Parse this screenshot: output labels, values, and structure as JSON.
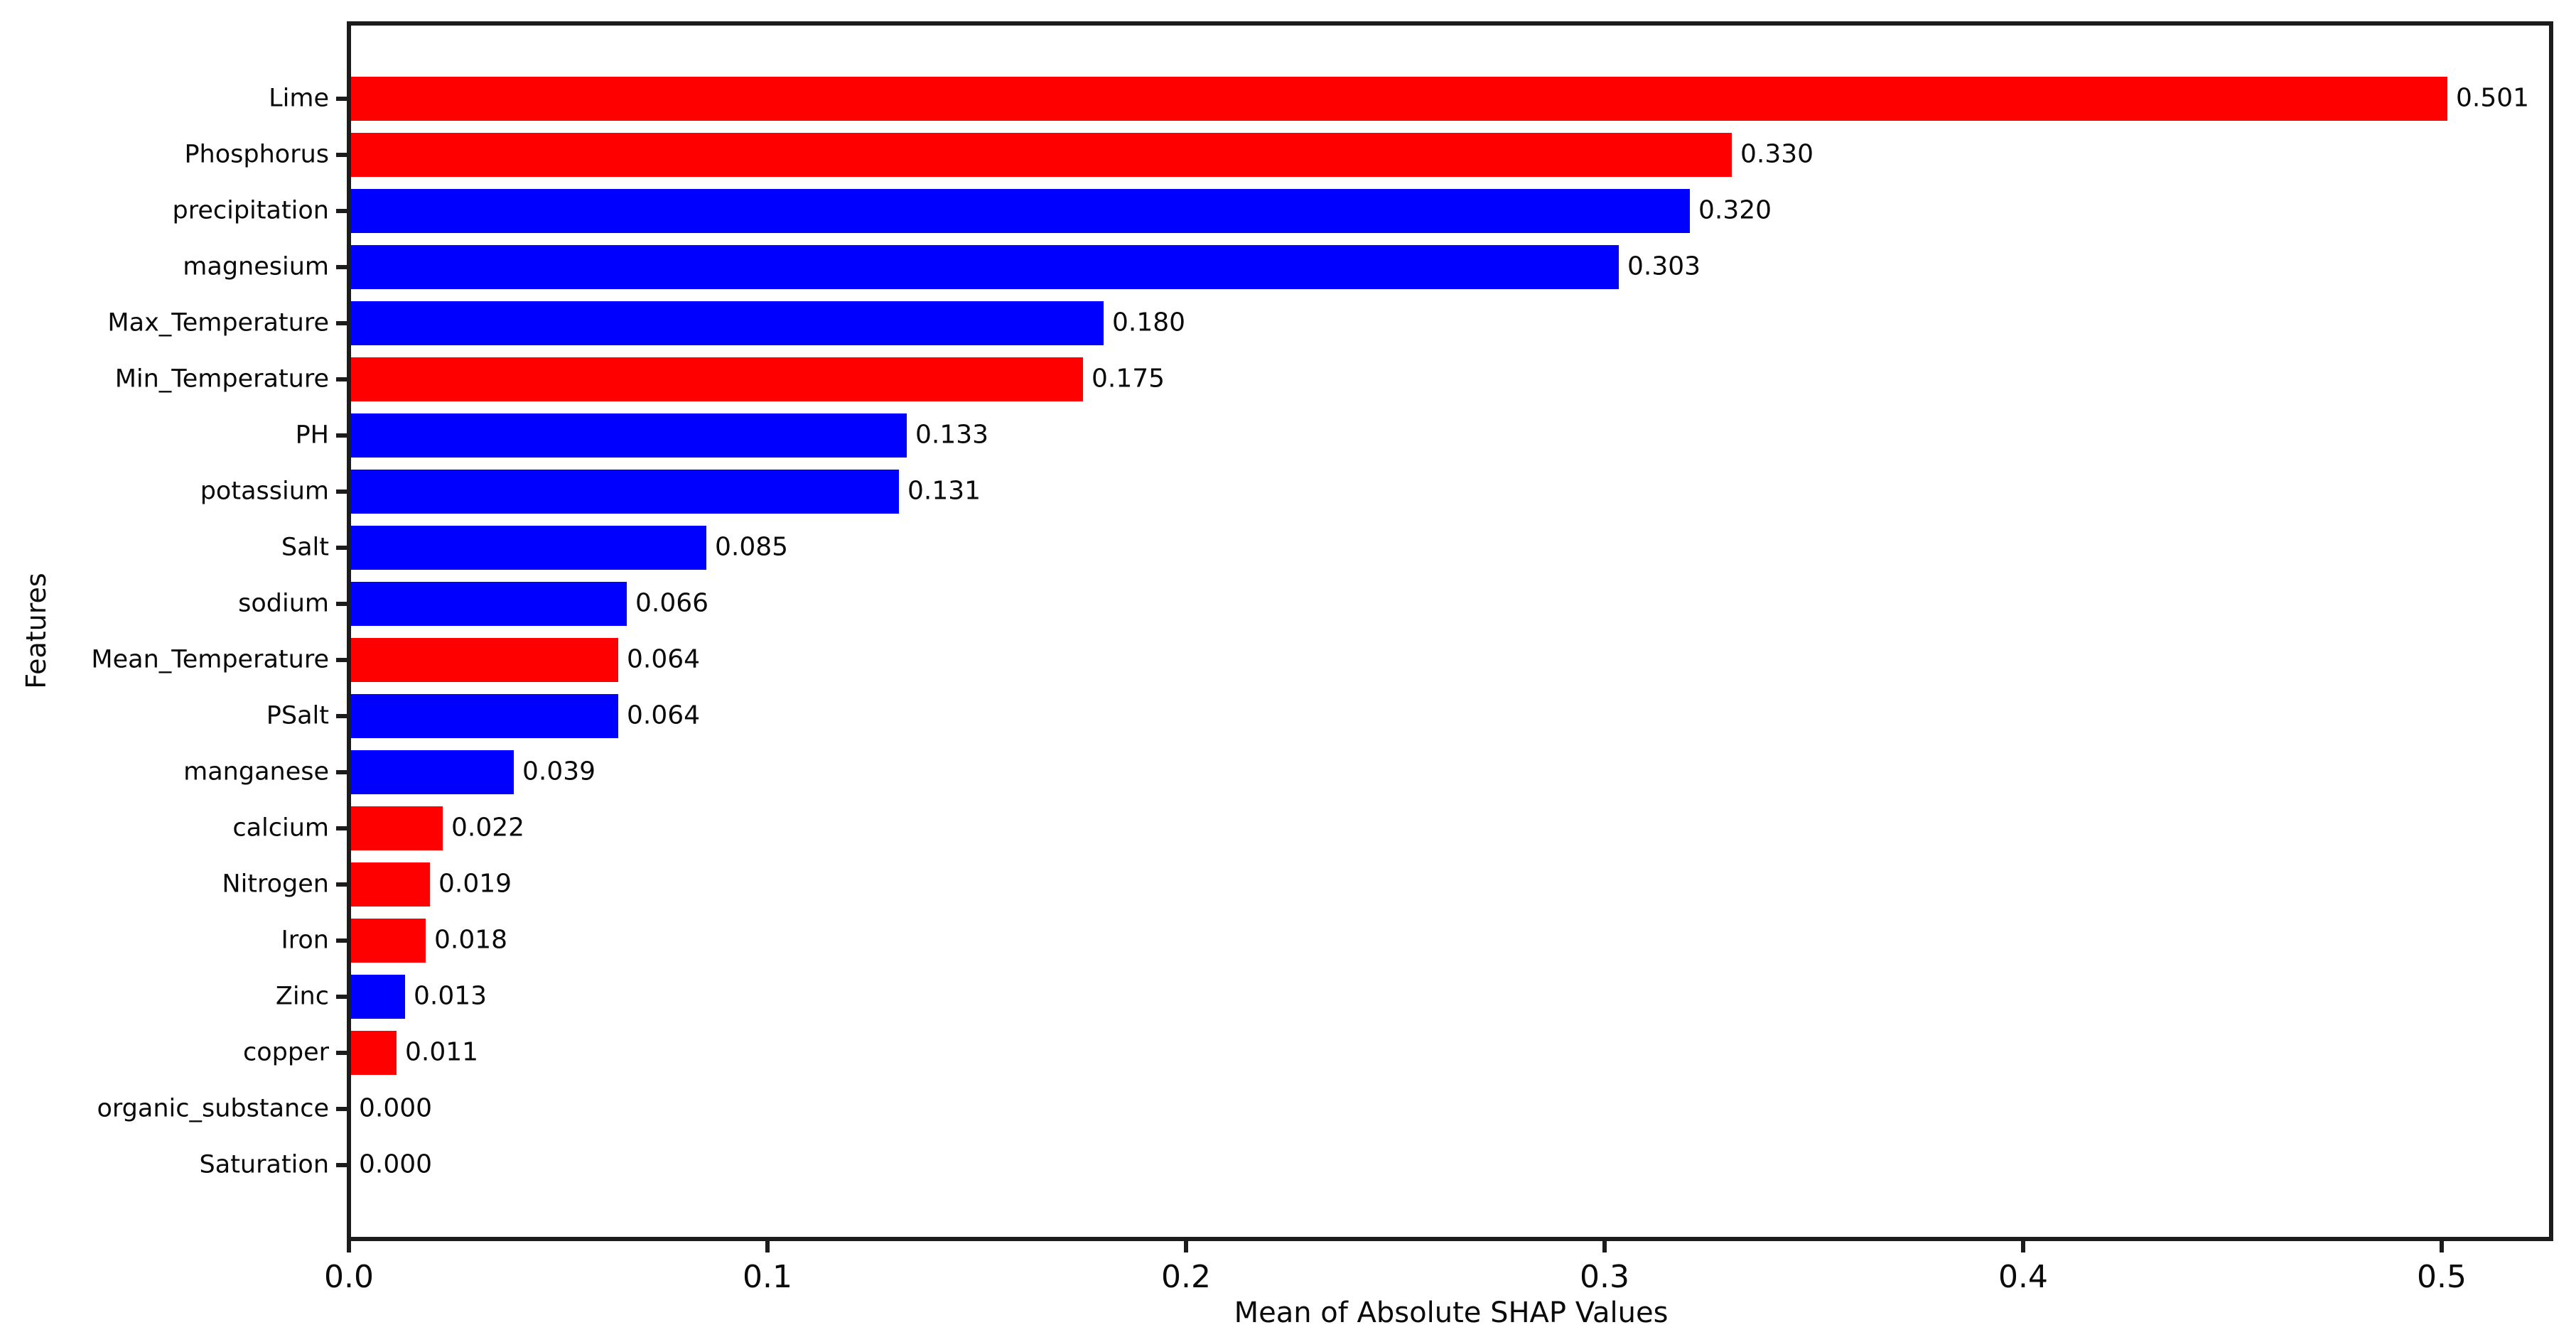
{
  "chart_data": {
    "type": "bar",
    "orientation": "horizontal",
    "title": "",
    "xlabel": "Mean of Absolute SHAP Values",
    "ylabel": "Features",
    "xlim": [
      0,
      0.5266
    ],
    "x_tick_values": [
      0.0,
      0.1,
      0.2,
      0.3,
      0.4,
      0.5
    ],
    "x_tick_labels": [
      "0.0",
      "0.1",
      "0.2",
      "0.3",
      "0.4",
      "0.5"
    ],
    "grid": false,
    "legend": false,
    "palette": {
      "red": "#ff0000",
      "blue": "#0000ff"
    },
    "categories": [
      "Lime",
      "Phosphorus",
      "precipitation",
      "magnesium",
      "Max_Temperature",
      "Min_Temperature",
      "PH",
      "potassium",
      "Salt",
      "sodium",
      "Mean_Temperature",
      "PSalt",
      "manganese",
      "calcium",
      "Nitrogen",
      "Iron",
      "Zinc",
      "copper",
      "organic_substance",
      "Saturation"
    ],
    "values": [
      0.501,
      0.33,
      0.32,
      0.303,
      0.18,
      0.175,
      0.133,
      0.131,
      0.085,
      0.066,
      0.064,
      0.064,
      0.039,
      0.022,
      0.019,
      0.018,
      0.013,
      0.011,
      0.0,
      0.0
    ],
    "bars": [
      {
        "label": "Lime",
        "value": 0.501,
        "value_label": "0.501",
        "color": "red"
      },
      {
        "label": "Phosphorus",
        "value": 0.33,
        "value_label": "0.330",
        "color": "red"
      },
      {
        "label": "precipitation",
        "value": 0.32,
        "value_label": "0.320",
        "color": "blue"
      },
      {
        "label": "magnesium",
        "value": 0.303,
        "value_label": "0.303",
        "color": "blue"
      },
      {
        "label": "Max_Temperature",
        "value": 0.18,
        "value_label": "0.180",
        "color": "blue"
      },
      {
        "label": "Min_Temperature",
        "value": 0.175,
        "value_label": "0.175",
        "color": "red"
      },
      {
        "label": "PH",
        "value": 0.133,
        "value_label": "0.133",
        "color": "blue"
      },
      {
        "label": "potassium",
        "value": 0.131,
        "value_label": "0.131",
        "color": "blue"
      },
      {
        "label": "Salt",
        "value": 0.085,
        "value_label": "0.085",
        "color": "blue"
      },
      {
        "label": "sodium",
        "value": 0.066,
        "value_label": "0.066",
        "color": "blue"
      },
      {
        "label": "Mean_Temperature",
        "value": 0.064,
        "value_label": "0.064",
        "color": "red"
      },
      {
        "label": "PSalt",
        "value": 0.064,
        "value_label": "0.064",
        "color": "blue"
      },
      {
        "label": "manganese",
        "value": 0.039,
        "value_label": "0.039",
        "color": "blue"
      },
      {
        "label": "calcium",
        "value": 0.022,
        "value_label": "0.022",
        "color": "red"
      },
      {
        "label": "Nitrogen",
        "value": 0.019,
        "value_label": "0.019",
        "color": "red"
      },
      {
        "label": "Iron",
        "value": 0.018,
        "value_label": "0.018",
        "color": "red"
      },
      {
        "label": "Zinc",
        "value": 0.013,
        "value_label": "0.013",
        "color": "blue"
      },
      {
        "label": "copper",
        "value": 0.011,
        "value_label": "0.011",
        "color": "red"
      },
      {
        "label": "organic_substance",
        "value": 0.0,
        "value_label": "0.000",
        "color": "none"
      },
      {
        "label": "Saturation",
        "value": 0.0,
        "value_label": "0.000",
        "color": "none"
      }
    ]
  }
}
